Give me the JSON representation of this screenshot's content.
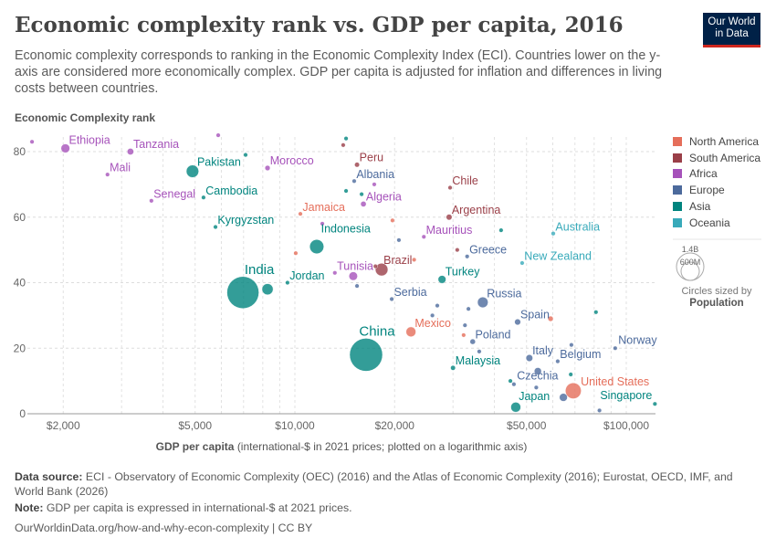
{
  "header": {
    "title": "Economic complexity rank vs. GDP per capita, 2016",
    "subtitle": "Economic complexity corresponds to ranking in the Economic Complexity Index (ECI). Countries lower on the y-axis are considered more economically complex. GDP per capita is adjusted for inflation and differences in living costs between countries.",
    "logo": "Our World in Data"
  },
  "legend": {
    "regions": [
      {
        "name": "North America",
        "color": "#E56E5A"
      },
      {
        "name": "South America",
        "color": "#9A3F48"
      },
      {
        "name": "Africa",
        "color": "#A652BA"
      },
      {
        "name": "Europe",
        "color": "#4C6A9C"
      },
      {
        "name": "Asia",
        "color": "#00847E"
      },
      {
        "name": "Oceania",
        "color": "#38AABA"
      }
    ],
    "size_big": "1.4B",
    "size_small": "600M",
    "size_caption": "Circles sized by",
    "size_variable": "Population"
  },
  "chart_data": {
    "type": "scatter",
    "ylabel": "Economic Complexity rank",
    "xlabel": "GDP per capita",
    "xlabel_note": "(international-$ in 2021 prices; plotted on a logarithmic axis)",
    "xscale": "log",
    "xlim": [
      1600,
      125000
    ],
    "ylim": [
      0,
      85
    ],
    "xticks": [
      {
        "v": 2000,
        "l": "$2,000"
      },
      {
        "v": 5000,
        "l": "$5,000"
      },
      {
        "v": 10000,
        "l": "$10,000"
      },
      {
        "v": 20000,
        "l": "$20,000"
      },
      {
        "v": 50000,
        "l": "$50,000"
      },
      {
        "v": 100000,
        "l": "$100,000"
      }
    ],
    "yticks": [
      0,
      20,
      40,
      60,
      80
    ],
    "grid": true,
    "legend_position": "right",
    "points": [
      {
        "label": "Ethiopia",
        "region": "Africa",
        "x": 2030,
        "y": 81,
        "pop": 100
      },
      {
        "label": "Tanzania",
        "region": "Africa",
        "x": 3190,
        "y": 80,
        "pop": 55
      },
      {
        "label": "Mali",
        "region": "Africa",
        "x": 2720,
        "y": 73,
        "pop": 18
      },
      {
        "label": "Senegal",
        "region": "Africa",
        "x": 3690,
        "y": 65,
        "pop": 15
      },
      {
        "label": "Pakistan",
        "region": "Asia",
        "x": 4910,
        "y": 74,
        "pop": 200
      },
      {
        "label": "Cambodia",
        "region": "Asia",
        "x": 5300,
        "y": 66,
        "pop": 16
      },
      {
        "label": "Kyrgyzstan",
        "region": "Asia",
        "x": 5760,
        "y": 57,
        "pop": 6
      },
      {
        "label": "Morocco",
        "region": "Africa",
        "x": 8270,
        "y": 75,
        "pop": 35
      },
      {
        "label": "Jamaica",
        "region": "North America",
        "x": 10390,
        "y": 61,
        "pop": 3
      },
      {
        "label": "India",
        "region": "Asia",
        "x": 6970,
        "y": 37,
        "pop": 1320
      },
      {
        "label": "Jordan",
        "region": "Asia",
        "x": 9500,
        "y": 40,
        "pop": 10
      },
      {
        "label": "",
        "region": "Asia",
        "x": 8270,
        "y": 38,
        "pop": 160
      },
      {
        "label": "Indonesia",
        "region": "Asia",
        "x": 11640,
        "y": 51,
        "pop": 260
      },
      {
        "label": "",
        "region": "Africa",
        "x": 15000,
        "y": 42,
        "pop": 95
      },
      {
        "label": "Tunisia",
        "region": "Africa",
        "x": 13200,
        "y": 43,
        "pop": 11
      },
      {
        "label": "Brazil",
        "region": "South America",
        "x": 18270,
        "y": 44,
        "pop": 205
      },
      {
        "label": "",
        "region": "South America",
        "x": 17500,
        "y": 45,
        "pop": 12
      },
      {
        "label": "Mexico",
        "region": "North America",
        "x": 22400,
        "y": 25,
        "pop": 125
      },
      {
        "label": "China",
        "region": "Asia",
        "x": 16400,
        "y": 18,
        "pop": 1400
      },
      {
        "label": "Peru",
        "region": "South America",
        "x": 15400,
        "y": 76,
        "pop": 31
      },
      {
        "label": "Albania",
        "region": "Europe",
        "x": 15100,
        "y": 71,
        "pop": 3
      },
      {
        "label": "Algeria",
        "region": "Africa",
        "x": 16100,
        "y": 64,
        "pop": 40
      },
      {
        "label": "Chile",
        "region": "South America",
        "x": 29400,
        "y": 69,
        "pop": 18
      },
      {
        "label": "Argentina",
        "region": "South America",
        "x": 29200,
        "y": 60,
        "pop": 44
      },
      {
        "label": "Mauritius",
        "region": "Africa",
        "x": 24500,
        "y": 54,
        "pop": 1
      },
      {
        "label": "Greece",
        "region": "Europe",
        "x": 33100,
        "y": 48,
        "pop": 11
      },
      {
        "label": "Australia",
        "region": "Oceania",
        "x": 60200,
        "y": 55,
        "pop": 24
      },
      {
        "label": "New Zealand",
        "region": "Oceania",
        "x": 48500,
        "y": 46,
        "pop": 5
      },
      {
        "label": "Turkey",
        "region": "Asia",
        "x": 27800,
        "y": 41,
        "pop": 80
      },
      {
        "label": "Serbia",
        "region": "Europe",
        "x": 19600,
        "y": 35,
        "pop": 7
      },
      {
        "label": "Russia",
        "region": "Europe",
        "x": 36900,
        "y": 34,
        "pop": 145
      },
      {
        "label": "Spain",
        "region": "Europe",
        "x": 47000,
        "y": 28,
        "pop": 47
      },
      {
        "label": "Poland",
        "region": "Europe",
        "x": 34400,
        "y": 22,
        "pop": 38
      },
      {
        "label": "Italy",
        "region": "Europe",
        "x": 51000,
        "y": 17,
        "pop": 60
      },
      {
        "label": "Belgium",
        "region": "Europe",
        "x": 62100,
        "y": 16,
        "pop": 11
      },
      {
        "label": "Norway",
        "region": "Europe",
        "x": 92600,
        "y": 20,
        "pop": 5
      },
      {
        "label": "Malaysia",
        "region": "Asia",
        "x": 30000,
        "y": 14,
        "pop": 31
      },
      {
        "label": "Czechia",
        "region": "Europe",
        "x": 45800,
        "y": 9,
        "pop": 11
      },
      {
        "label": "United States",
        "region": "North America",
        "x": 69200,
        "y": 7,
        "pop": 323
      },
      {
        "label": "Japan",
        "region": "Asia",
        "x": 46400,
        "y": 2,
        "pop": 127
      },
      {
        "label": "Singapore",
        "region": "Asia",
        "x": 122000,
        "y": 3,
        "pop": 6
      },
      {
        "label": "",
        "region": "Africa",
        "x": 1610,
        "y": 83,
        "pop": 10
      },
      {
        "label": "",
        "region": "Africa",
        "x": 5870,
        "y": 85,
        "pop": 8
      },
      {
        "label": "",
        "region": "Asia",
        "x": 7100,
        "y": 79,
        "pop": 8
      },
      {
        "label": "",
        "region": "Asia",
        "x": 14270,
        "y": 84,
        "pop": 6
      },
      {
        "label": "",
        "region": "South America",
        "x": 13990,
        "y": 82,
        "pop": 7
      },
      {
        "label": "",
        "region": "Asia",
        "x": 14270,
        "y": 68,
        "pop": 18
      },
      {
        "label": "",
        "region": "Africa",
        "x": 17360,
        "y": 70,
        "pop": 10
      },
      {
        "label": "",
        "region": "Asia",
        "x": 15900,
        "y": 67,
        "pop": 8
      },
      {
        "label": "",
        "region": "North America",
        "x": 19700,
        "y": 59,
        "pop": 5
      },
      {
        "label": "",
        "region": "Africa",
        "x": 12100,
        "y": 58,
        "pop": 9
      },
      {
        "label": "",
        "region": "Europe",
        "x": 20600,
        "y": 53,
        "pop": 7
      },
      {
        "label": "",
        "region": "Asia",
        "x": 41900,
        "y": 56,
        "pop": 5
      },
      {
        "label": "",
        "region": "South America",
        "x": 30900,
        "y": 50,
        "pop": 4
      },
      {
        "label": "",
        "region": "North America",
        "x": 10060,
        "y": 49,
        "pop": 10
      },
      {
        "label": "",
        "region": "North America",
        "x": 22900,
        "y": 47,
        "pop": 7
      },
      {
        "label": "",
        "region": "Europe",
        "x": 15400,
        "y": 39,
        "pop": 4
      },
      {
        "label": "",
        "region": "Europe",
        "x": 26900,
        "y": 33,
        "pop": 4
      },
      {
        "label": "",
        "region": "Europe",
        "x": 33400,
        "y": 32,
        "pop": 6
      },
      {
        "label": "",
        "region": "Europe",
        "x": 26000,
        "y": 30,
        "pop": 7
      },
      {
        "label": "",
        "region": "Europe",
        "x": 32600,
        "y": 27,
        "pop": 10
      },
      {
        "label": "",
        "region": "North America",
        "x": 59100,
        "y": 29,
        "pop": 36
      },
      {
        "label": "",
        "region": "Asia",
        "x": 81000,
        "y": 31,
        "pop": 3
      },
      {
        "label": "",
        "region": "North America",
        "x": 32300,
        "y": 24,
        "pop": 4
      },
      {
        "label": "",
        "region": "Europe",
        "x": 36000,
        "y": 19,
        "pop": 10
      },
      {
        "label": "",
        "region": "Europe",
        "x": 68300,
        "y": 21,
        "pop": 5
      },
      {
        "label": "",
        "region": "Europe",
        "x": 54100,
        "y": 13,
        "pop": 66
      },
      {
        "label": "",
        "region": "Asia",
        "x": 68000,
        "y": 12,
        "pop": 3
      },
      {
        "label": "",
        "region": "Asia",
        "x": 44700,
        "y": 10,
        "pop": 9
      },
      {
        "label": "",
        "region": "Europe",
        "x": 53500,
        "y": 8,
        "pop": 23
      },
      {
        "label": "",
        "region": "Europe",
        "x": 64600,
        "y": 5,
        "pop": 82
      },
      {
        "label": "",
        "region": "Europe",
        "x": 83000,
        "y": 1,
        "pop": 8
      }
    ]
  },
  "footer": {
    "source_label": "Data source:",
    "source": "ECI - Observatory of Economic Complexity (OEC) (2016) and the Atlas of Economic Complexity (2016); Eurostat, OECD, IMF, and World Bank (2026)",
    "note_label": "Note:",
    "note": "GDP per capita is expressed in international-$ at 2021 prices.",
    "url": "OurWorldinData.org/how-and-why-econ-complexity | CC BY"
  }
}
